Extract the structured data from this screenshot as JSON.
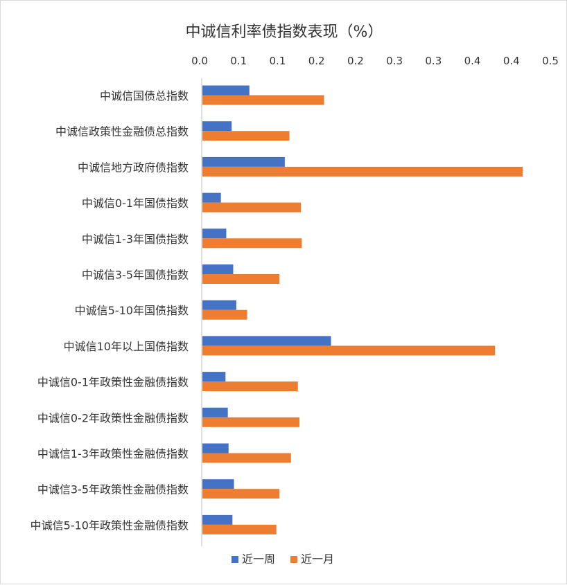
{
  "chart_data": {
    "type": "bar",
    "orientation": "horizontal",
    "title": "中诚信利率债指数表现（%）",
    "x_tick_labels": [
      "0.0",
      "0.1",
      "0.1",
      "0.2",
      "0.2",
      "0.3",
      "0.3",
      "0.4",
      "0.4",
      "0.5"
    ],
    "xlim": [
      0,
      0.45
    ],
    "xaxis_position": "top",
    "grid": false,
    "legend_position": "bottom",
    "categories": [
      "中诚信国债总指数",
      "中诚信政策性金融债总指数",
      "中诚信地方政府债指数",
      "中诚信0-1年国债指数",
      "中诚信1-3年国债指数",
      "中诚信3-5年国债指数",
      "中诚信5-10年国债指数",
      "中诚信10年以上国债指数",
      "中诚信0-1年政策性金融债指数",
      "中诚信0-2年政策性金融债指数",
      "中诚信1-3年政策性金融债指数",
      "中诚信3-5年政策性金融债指数",
      "中诚信5-10年政策性金融债指数"
    ],
    "series": [
      {
        "name": "近一周",
        "color": "#4472C4",
        "values": [
          0.061,
          0.038,
          0.107,
          0.024,
          0.031,
          0.04,
          0.044,
          0.167,
          0.03,
          0.033,
          0.034,
          0.041,
          0.039
        ]
      },
      {
        "name": "近一月",
        "color": "#ED7D31",
        "values": [
          0.158,
          0.113,
          0.416,
          0.128,
          0.129,
          0.1,
          0.058,
          0.38,
          0.124,
          0.126,
          0.115,
          0.1,
          0.096
        ]
      }
    ]
  }
}
